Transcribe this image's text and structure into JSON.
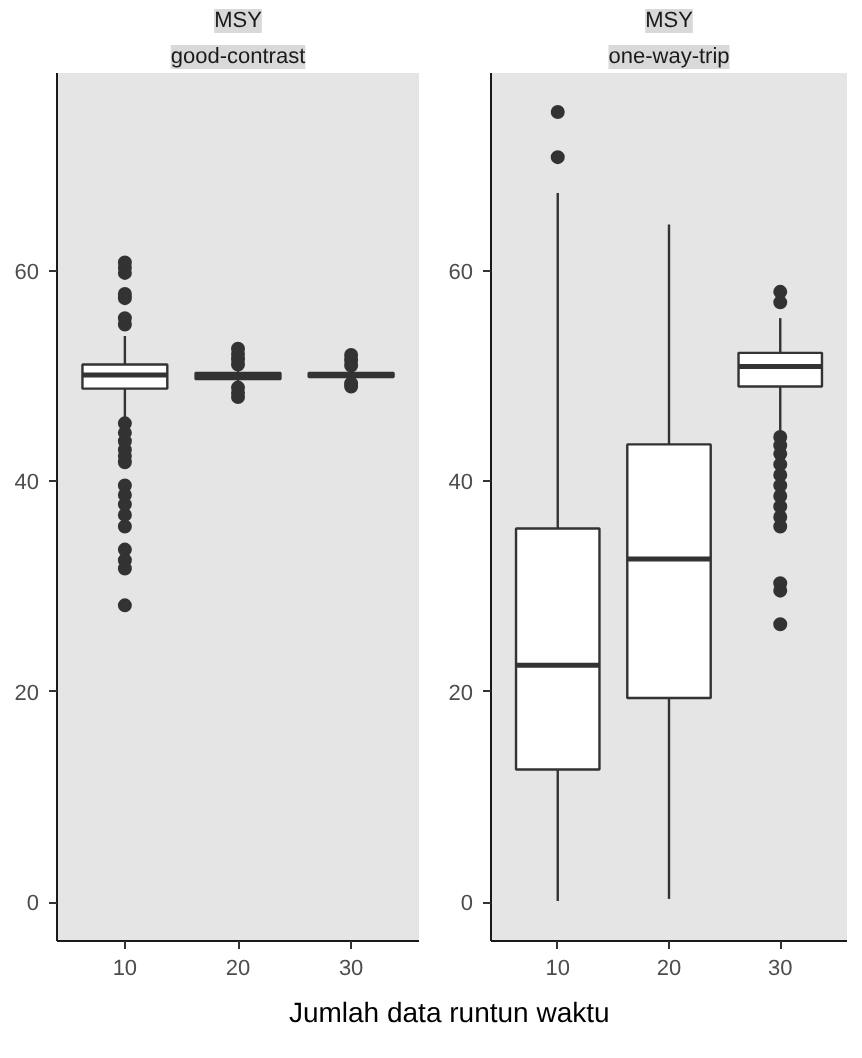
{
  "chart_data": [
    {
      "type": "box",
      "title": "MSY",
      "subtitle": "good-contrast",
      "xlabel": "Jumlah data runtun waktu",
      "categories": [
        "10",
        "20",
        "30"
      ],
      "ylim": [
        -3.7,
        78.8
      ],
      "yticks": [
        0,
        20,
        40,
        60
      ],
      "grid": false,
      "color": "#ffffff",
      "boxes": [
        {
          "low": 45.8,
          "q1": 48.8,
          "median": 50.1,
          "q3": 51.1,
          "high": 53.8,
          "outliers": [
            60.8,
            60.3,
            59.8,
            57.8,
            57.4,
            55.5,
            54.9,
            45.5,
            44.6,
            43.8,
            43.0,
            42.4,
            41.8,
            39.6,
            38.7,
            37.8,
            36.8,
            35.7,
            33.5,
            32.5,
            31.7,
            28.2
          ]
        },
        {
          "low": 49.2,
          "q1": 49.7,
          "median": 50.0,
          "q3": 50.3,
          "high": 50.8,
          "outliers": [
            52.6,
            52.1,
            51.6,
            51.1,
            48.9,
            48.4,
            48.0
          ]
        },
        {
          "low": 49.6,
          "q1": 49.9,
          "median": 50.1,
          "q3": 50.3,
          "high": 50.6,
          "outliers": [
            52.0,
            51.5,
            51.0,
            49.3,
            49.0
          ]
        }
      ]
    },
    {
      "type": "box",
      "title": "MSY",
      "subtitle": "one-way-trip",
      "categories": [
        "10",
        "20",
        "30"
      ],
      "ylim": [
        -3.7,
        78.8
      ],
      "yticks": [
        0,
        20,
        40,
        60
      ],
      "grid": false,
      "color": "#ffffff",
      "boxes": [
        {
          "low": 0.1,
          "q1": 12.6,
          "median": 22.5,
          "q3": 35.5,
          "high": 67.4,
          "outliers": [
            75.1,
            70.8
          ]
        },
        {
          "low": 0.3,
          "q1": 19.4,
          "median": 32.6,
          "q3": 43.5,
          "high": 64.4
        },
        {
          "low": 44.7,
          "q1": 49.0,
          "median": 50.9,
          "q3": 52.2,
          "high": 55.5,
          "outliers": [
            58.0,
            57.0,
            44.2,
            43.4,
            42.6,
            41.6,
            40.6,
            39.6,
            38.6,
            37.6,
            36.6,
            35.7,
            30.3,
            29.6,
            26.4
          ]
        }
      ]
    }
  ]
}
